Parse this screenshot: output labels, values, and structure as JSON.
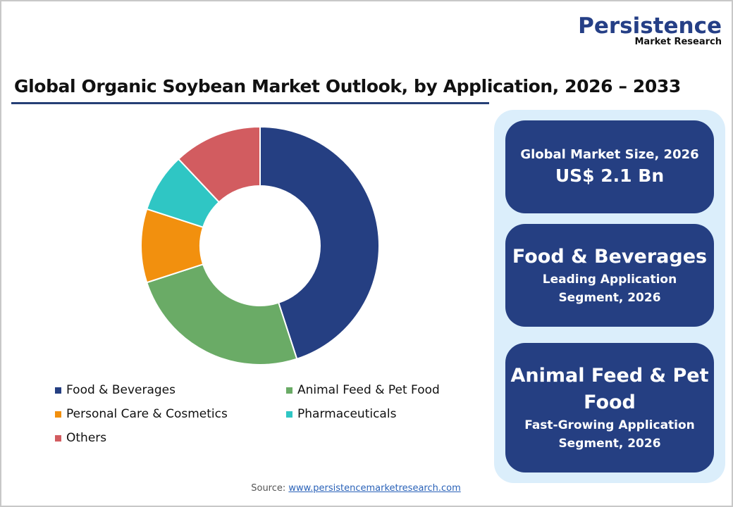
{
  "logo": {
    "main": "Persistence",
    "sub": "Market Research"
  },
  "title": "Global Organic Soybean Market Outlook, by Application, 2026 – 2033",
  "chart_data": {
    "type": "pie",
    "subtype": "donut",
    "title": "Global Organic Soybean Market Outlook, by Application, 2026 – 2033",
    "categories": [
      "Food & Beverages",
      "Animal Feed & Pet Food",
      "Personal Care & Cosmetics",
      "Pharmaceuticals",
      "Others"
    ],
    "values": [
      45,
      25,
      10,
      8,
      12
    ],
    "unit": "% share (estimated from slice angles)",
    "colors": [
      "#253f82",
      "#6aab66",
      "#f2900e",
      "#2fc6c4",
      "#d25c60"
    ],
    "legend_position": "bottom",
    "start_angle": "top, clockwise"
  },
  "legend": [
    {
      "label": "Food & Beverages",
      "color": "#253f82"
    },
    {
      "label": "Animal Feed & Pet Food",
      "color": "#6aab66"
    },
    {
      "label": "Personal Care & Cosmetics",
      "color": "#f2900e"
    },
    {
      "label": "Pharmaceuticals",
      "color": "#2fc6c4"
    },
    {
      "label": "Others",
      "color": "#d25c60"
    }
  ],
  "cards": [
    {
      "line1": "Global Market Size, 2026",
      "line2": "US$ 2.1 Bn"
    },
    {
      "headline": "Food & Beverages",
      "sub1": "Leading Application",
      "sub2": "Segment, 2026"
    },
    {
      "headline1": "Animal Feed & Pet",
      "headline2": "Food",
      "sub1": "Fast-Growing Application",
      "sub2": "Segment, 2026"
    }
  ],
  "source": {
    "label": "Source:",
    "link": "www.persistencemarketresearch.com"
  }
}
